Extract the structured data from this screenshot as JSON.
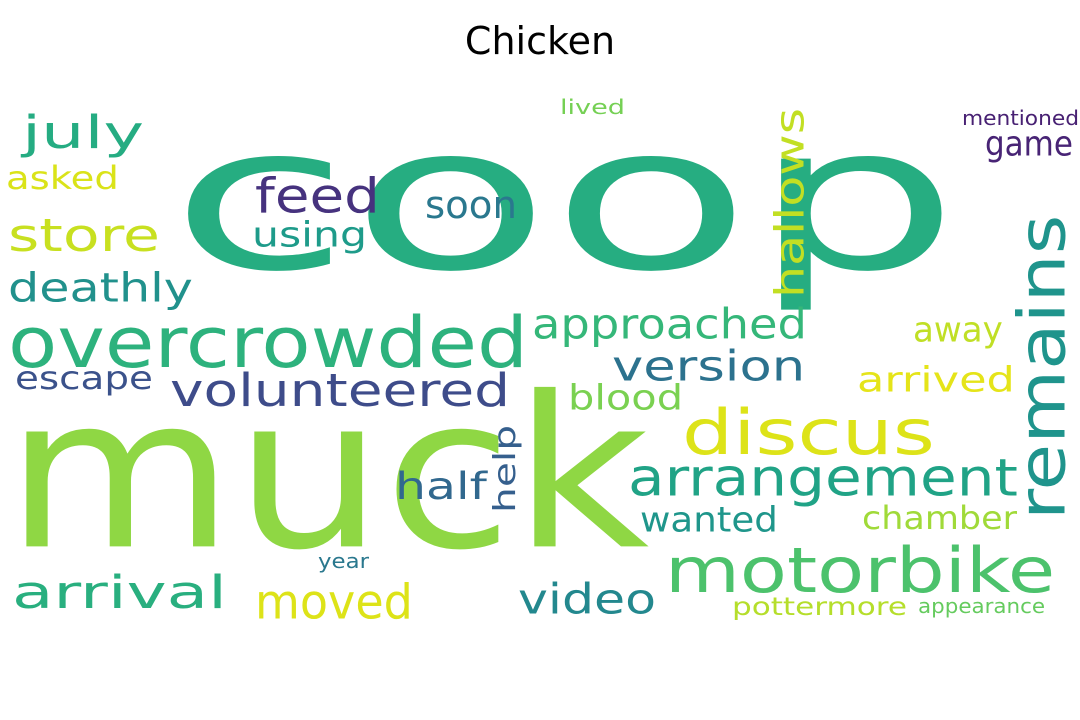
{
  "title": "Chicken",
  "words": [
    {
      "text": "coop",
      "color": "#26ad81"
    },
    {
      "text": "muck",
      "color": "#8fd744"
    },
    {
      "text": "overcrowded",
      "color": "#2db27d"
    },
    {
      "text": "remains",
      "color": "#1f948c"
    },
    {
      "text": "motorbike",
      "color": "#4cc26c"
    },
    {
      "text": "arrangement",
      "color": "#20a386"
    },
    {
      "text": "discus",
      "color": "#dde318"
    },
    {
      "text": "volunteered",
      "color": "#3e4c8a"
    },
    {
      "text": "approached",
      "color": "#35b779"
    },
    {
      "text": "hallows",
      "color": "#c2df23"
    },
    {
      "text": "feed",
      "color": "#46327e"
    },
    {
      "text": "version",
      "color": "#2c728e"
    },
    {
      "text": "deathly",
      "color": "#21918c"
    },
    {
      "text": "store",
      "color": "#c8e020"
    },
    {
      "text": "july",
      "color": "#25ac82"
    },
    {
      "text": "arrival",
      "color": "#29af7f"
    },
    {
      "text": "moved",
      "color": "#dde318"
    },
    {
      "text": "video",
      "color": "#23888e"
    },
    {
      "text": "escape",
      "color": "#3b528b"
    },
    {
      "text": "soon",
      "color": "#2a788e"
    },
    {
      "text": "using",
      "color": "#1e9b8a"
    },
    {
      "text": "asked",
      "color": "#dae319"
    },
    {
      "text": "game",
      "color": "#482475"
    },
    {
      "text": "away",
      "color": "#c0df25"
    },
    {
      "text": "arrived",
      "color": "#e5e419"
    },
    {
      "text": "blood",
      "color": "#7ad151"
    },
    {
      "text": "half",
      "color": "#31688e"
    },
    {
      "text": "help",
      "color": "#355f8d"
    },
    {
      "text": "wanted",
      "color": "#1f968b"
    },
    {
      "text": "chamber",
      "color": "#a0da39"
    },
    {
      "text": "pottermore",
      "color": "#b5de2b"
    },
    {
      "text": "appearance",
      "color": "#65cb5e"
    },
    {
      "text": "mentioned",
      "color": "#482173"
    },
    {
      "text": "lived",
      "color": "#75d054"
    },
    {
      "text": "year",
      "color": "#2a788e"
    }
  ]
}
